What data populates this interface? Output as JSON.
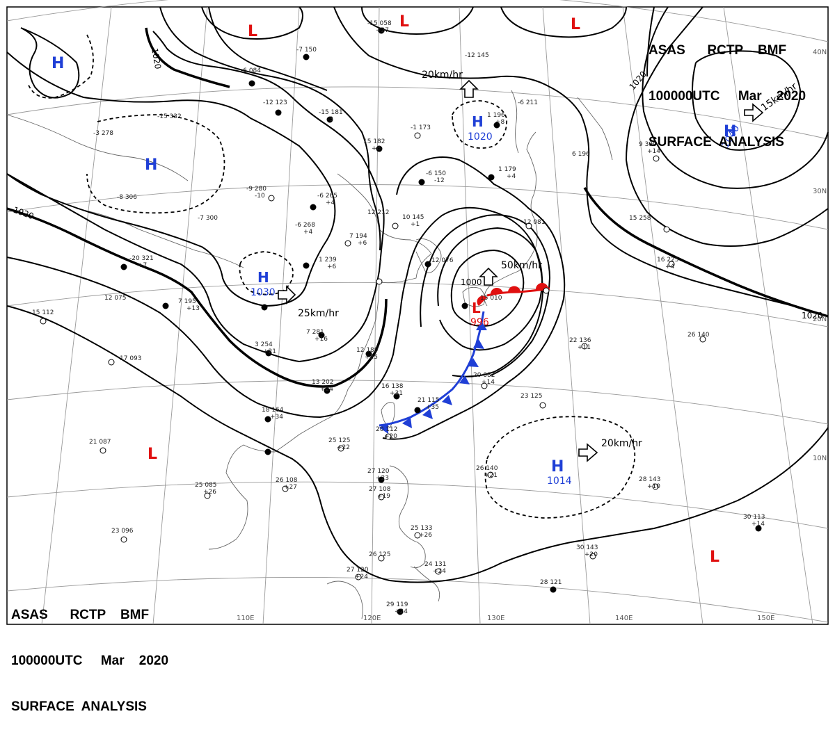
{
  "header": {
    "line1": "ASAS      RCTP    BMF",
    "line2": "100000UTC     Mar    2020",
    "line3": "SURFACE  ANALYSIS"
  },
  "pressure_systems": [
    {
      "id": "h1",
      "label": "H",
      "kind": "high",
      "color": "#1f3fd6"
    },
    {
      "id": "h2",
      "label": "H",
      "kind": "high",
      "color": "#1f3fd6"
    },
    {
      "id": "h3",
      "label": "H",
      "kind": "high",
      "color": "#1f3fd6",
      "value": "1030",
      "motion": "25km/hr"
    },
    {
      "id": "h4",
      "label": "H",
      "kind": "high",
      "color": "#1f3fd6",
      "value": "1020",
      "motion": "20km/hr"
    },
    {
      "id": "h5",
      "label": "H",
      "kind": "high",
      "color": "#1f3fd6",
      "value": "1040",
      "motion": "15km/hr"
    },
    {
      "id": "h6",
      "label": "H",
      "kind": "high",
      "color": "#1f3fd6",
      "value": "1014",
      "motion": "20km/hr"
    },
    {
      "id": "l1",
      "label": "L",
      "kind": "low",
      "color": "#e01010"
    },
    {
      "id": "l2",
      "label": "L",
      "kind": "low",
      "color": "#e01010"
    },
    {
      "id": "l3",
      "label": "L",
      "kind": "low",
      "color": "#e01010"
    },
    {
      "id": "l4",
      "label": "L",
      "kind": "low",
      "color": "#e01010",
      "value": "996",
      "motion": "50km/hr"
    },
    {
      "id": "l5",
      "label": "L",
      "kind": "low",
      "color": "#e01010"
    },
    {
      "id": "l6",
      "label": "L",
      "kind": "low",
      "color": "#e01010"
    }
  ],
  "isobar_labels": [
    "1020",
    "1020",
    "1020",
    "1020",
    "1000"
  ],
  "graticule": {
    "longitudes": [
      "110E",
      "120E",
      "130E",
      "140E",
      "150E"
    ],
    "latitudes": [
      "40N",
      "30N",
      "20N",
      "10N"
    ]
  },
  "stations": [
    {
      "t": "15",
      "p": "112"
    },
    {
      "t": "17",
      "p": "093"
    },
    {
      "t": "21",
      "p": "087"
    },
    {
      "t": "25",
      "p": "085",
      "d": "+26"
    },
    {
      "t": "23",
      "p": "096"
    },
    {
      "t": "26",
      "p": "108",
      "d": "+27"
    },
    {
      "t": "18",
      "p": "164",
      "d": "+34"
    },
    {
      "t": "13",
      "p": "202",
      "d": "+24"
    },
    {
      "t": "12",
      "p": "189",
      "d": "+25"
    },
    {
      "t": "7",
      "p": "281",
      "d": "+16"
    },
    {
      "t": "3",
      "p": "254",
      "d": "+21"
    },
    {
      "t": "7",
      "p": "195",
      "d": "+13"
    },
    {
      "t": "12",
      "p": "075"
    },
    {
      "t": "-20",
      "p": "321",
      "d": "+7"
    },
    {
      "t": "-7",
      "p": "300"
    },
    {
      "t": "-8",
      "p": "306"
    },
    {
      "t": "-9",
      "p": "280",
      "d": "-10"
    },
    {
      "t": "-6",
      "p": "268",
      "d": "+4"
    },
    {
      "t": "-6",
      "p": "265",
      "d": "+4"
    },
    {
      "t": "1",
      "p": "239",
      "d": "+6"
    },
    {
      "t": "-15",
      "p": "181",
      "d": "-3"
    },
    {
      "t": "-12",
      "p": "123"
    },
    {
      "t": "-6",
      "p": "084"
    },
    {
      "t": "-7",
      "p": "150"
    },
    {
      "t": "-15",
      "p": "058",
      "d": "+27"
    },
    {
      "t": "-3",
      "p": "278"
    },
    {
      "t": "-15",
      "p": "332"
    },
    {
      "t": "-1",
      "p": "173"
    },
    {
      "t": "-12",
      "p": "145"
    },
    {
      "t": "15",
      "p": "182",
      "d": "+8"
    },
    {
      "t": "-6",
      "p": "150",
      "d": "-12"
    },
    {
      "t": "1",
      "p": "179",
      "d": "+4"
    },
    {
      "t": "1",
      "p": "196",
      "d": "+8"
    },
    {
      "t": "-6",
      "p": "211"
    },
    {
      "t": "6",
      "p": "196"
    },
    {
      "t": "9",
      "p": "390",
      "d": "+14"
    },
    {
      "t": "15",
      "p": "258"
    },
    {
      "t": "16",
      "p": "225",
      "d": "+4"
    },
    {
      "t": "22",
      "p": "136",
      "d": "+11"
    },
    {
      "t": "26",
      "p": "140"
    },
    {
      "t": "20",
      "p": "082",
      "d": "+14"
    },
    {
      "t": "23",
      "p": "125"
    },
    {
      "t": "26",
      "p": "140",
      "d": "+21"
    },
    {
      "t": "28",
      "p": "143",
      "d": "+10"
    },
    {
      "t": "30",
      "p": "113",
      "d": "+14"
    },
    {
      "t": "30",
      "p": "143",
      "d": "+20"
    },
    {
      "t": "28",
      "p": "121"
    },
    {
      "t": "27",
      "p": "120",
      "d": "+24"
    },
    {
      "t": "29",
      "p": "119",
      "d": "+24"
    },
    {
      "t": "24",
      "p": "131",
      "d": "+24"
    },
    {
      "t": "25",
      "p": "133",
      "d": "+26"
    },
    {
      "t": "26",
      "p": "125"
    },
    {
      "t": "27",
      "p": "120",
      "d": "+23"
    },
    {
      "t": "27",
      "p": "108",
      "d": "+19"
    },
    {
      "t": "25",
      "p": "125",
      "d": "+22"
    },
    {
      "t": "20",
      "p": "112",
      "d": "+20"
    },
    {
      "t": "16",
      "p": "138",
      "d": "+31"
    },
    {
      "t": "21",
      "p": "115",
      "d": "+35"
    },
    {
      "t": "10",
      "p": "145",
      "d": "+1"
    },
    {
      "t": "12",
      "p": "212"
    },
    {
      "t": "7",
      "p": "194",
      "d": "+6"
    },
    {
      "t": "12",
      "p": "076"
    },
    {
      "t": "12",
      "p": "081"
    },
    {
      "t": "15",
      "p": "010"
    }
  ],
  "colors": {
    "isobar": "#000000",
    "high": "#1f3fd6",
    "low": "#e01010",
    "coast": "#555555",
    "graticule": "#888888"
  }
}
